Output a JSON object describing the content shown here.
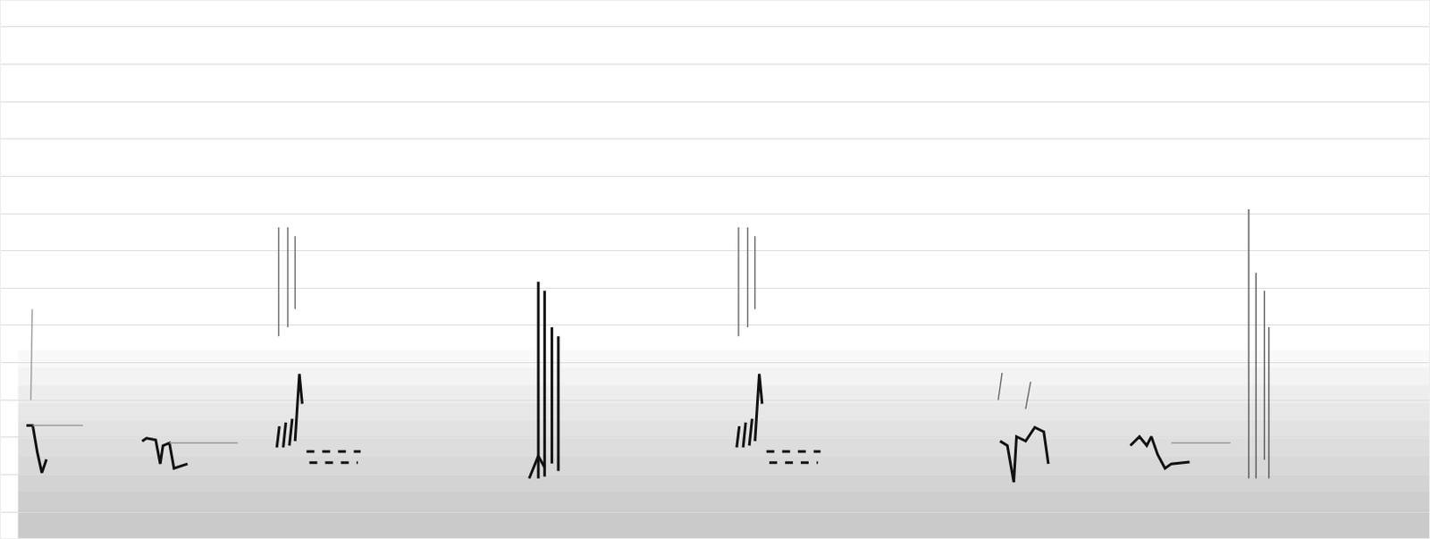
{
  "chart_data": {
    "type": "spectrogram",
    "color": "#111111",
    "grid": true,
    "tick_labels": false,
    "xlim": [
      0,
      100
    ],
    "ylim": [
      0.3,
      14.7
    ],
    "yticks": [
      1,
      2,
      3,
      4,
      5,
      6,
      7,
      8,
      9,
      10,
      11,
      12,
      13,
      14
    ],
    "strokes": [
      {
        "x": [
          1.79,
          2.23,
          2.55,
          2.87,
          3.19
        ],
        "y": [
          3.32,
          3.32,
          2.6,
          2.05,
          2.41
        ]
      },
      {
        "x": [
          2.23,
          5.74
        ],
        "y": [
          3.32,
          3.32
        ],
        "color": "#9a9a9a"
      },
      {
        "x": [
          2.1,
          2.2
        ],
        "y": [
          4.0,
          6.44
        ],
        "color": "#9a9a9a"
      },
      {
        "x": [
          9.89,
          10.2,
          10.84,
          11.16,
          11.35,
          11.8,
          12.12,
          13.07
        ],
        "y": [
          2.9,
          2.98,
          2.93,
          2.29,
          2.78,
          2.85,
          2.17,
          2.29
        ]
      },
      {
        "x": [
          11.8,
          16.58
        ],
        "y": [
          2.85,
          2.85
        ],
        "color": "#9a9a9a"
      },
      {
        "x": [
          19.45,
          19.45
        ],
        "y": [
          8.63,
          5.71
        ],
        "color": "#666666"
      },
      {
        "x": [
          20.09,
          20.09
        ],
        "y": [
          8.63,
          5.95
        ],
        "color": "#666666"
      },
      {
        "x": [
          20.6,
          20.6
        ],
        "y": [
          8.39,
          6.44
        ],
        "color": "#666666"
      },
      {
        "x": [
          19.32,
          19.5
        ],
        "y": [
          2.73,
          3.3
        ]
      },
      {
        "x": [
          19.77,
          19.95
        ],
        "y": [
          2.73,
          3.4
        ]
      },
      {
        "x": [
          20.2,
          20.4
        ],
        "y": [
          2.78,
          3.5
        ]
      },
      {
        "x": [
          20.6,
          20.9,
          21.1
        ],
        "y": [
          2.9,
          4.7,
          3.9
        ]
      },
      {
        "x": [
          21.4,
          25.19
        ],
        "y": [
          2.62,
          2.62
        ],
        "line_style": "dash"
      },
      {
        "x": [
          21.6,
          25.0
        ],
        "y": [
          2.32,
          2.32
        ],
        "line_style": "dash"
      },
      {
        "x": [
          36.99,
          37.63,
          38.07
        ],
        "y": [
          1.9,
          2.5,
          2.2
        ]
      },
      {
        "x": [
          37.63,
          37.63
        ],
        "y": [
          7.17,
          1.9
        ]
      },
      {
        "x": [
          38.07,
          38.07
        ],
        "y": [
          6.93,
          1.95
        ]
      },
      {
        "x": [
          38.58,
          38.58
        ],
        "y": [
          5.95,
          2.3
        ]
      },
      {
        "x": [
          39.03,
          39.03
        ],
        "y": [
          5.71,
          2.1
        ]
      },
      {
        "x": [
          51.65,
          51.65
        ],
        "y": [
          8.63,
          5.71
        ],
        "color": "#666666"
      },
      {
        "x": [
          52.29,
          52.29
        ],
        "y": [
          8.63,
          5.95
        ],
        "color": "#666666"
      },
      {
        "x": [
          52.8,
          52.8
        ],
        "y": [
          8.39,
          6.44
        ],
        "color": "#666666"
      },
      {
        "x": [
          51.52,
          51.7
        ],
        "y": [
          2.73,
          3.3
        ]
      },
      {
        "x": [
          51.97,
          52.15
        ],
        "y": [
          2.73,
          3.4
        ]
      },
      {
        "x": [
          52.4,
          52.6
        ],
        "y": [
          2.78,
          3.5
        ]
      },
      {
        "x": [
          52.8,
          53.1,
          53.3
        ],
        "y": [
          2.9,
          4.7,
          3.9
        ]
      },
      {
        "x": [
          53.6,
          57.39
        ],
        "y": [
          2.62,
          2.62
        ],
        "line_style": "dash"
      },
      {
        "x": [
          53.8,
          57.2
        ],
        "y": [
          2.32,
          2.32
        ],
        "line_style": "dash"
      },
      {
        "x": [
          69.96,
          70.47,
          70.92,
          71.11,
          71.75,
          72.39,
          73.02,
          73.34
        ],
        "y": [
          2.9,
          2.78,
          1.8,
          3.02,
          2.9,
          3.27,
          3.15,
          2.29
        ]
      },
      {
        "x": [
          69.83,
          70.1
        ],
        "y": [
          4.0,
          4.73
        ],
        "color": "#666666"
      },
      {
        "x": [
          71.75,
          72.1
        ],
        "y": [
          3.76,
          4.49
        ],
        "color": "#666666"
      },
      {
        "x": [
          79.08,
          79.72,
          80.23,
          80.55,
          80.99,
          81.51,
          81.95,
          83.23
        ],
        "y": [
          2.78,
          3.02,
          2.78,
          3.02,
          2.54,
          2.17,
          2.29,
          2.34
        ]
      },
      {
        "x": [
          81.95,
          86.1
        ],
        "y": [
          2.85,
          2.85
        ],
        "color": "#9a9a9a"
      },
      {
        "x": [
          87.37,
          87.37
        ],
        "y": [
          9.12,
          1.9
        ],
        "color": "#555555"
      },
      {
        "x": [
          87.88,
          87.88
        ],
        "y": [
          7.41,
          1.9
        ],
        "color": "#555555"
      },
      {
        "x": [
          88.46,
          88.46
        ],
        "y": [
          6.93,
          2.4
        ],
        "color": "#555555"
      },
      {
        "x": [
          88.78,
          88.78
        ],
        "y": [
          5.95,
          1.9
        ],
        "color": "#555555"
      }
    ]
  }
}
